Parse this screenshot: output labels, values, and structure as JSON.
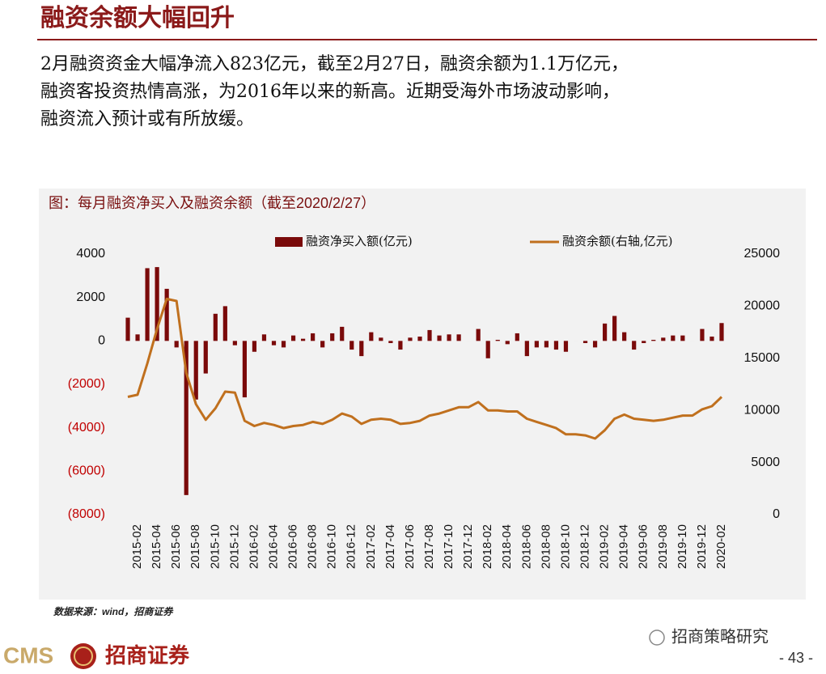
{
  "header": {
    "title": "融资余额大幅回升"
  },
  "body": {
    "lines": [
      "2月融资资金大幅净流入823亿元，截至2月27日，融资余额为1.1万亿元，",
      "融资客投资热情高涨，为2016年以来的新高。近期受海外市场波动影响，",
      "融资流入预计或有所放缓。"
    ]
  },
  "chart_data": {
    "type": "bar",
    "title": "图：每月融资净买入及融资余额（截至2020/2/27）",
    "categories": [
      null,
      "2015-02",
      null,
      "2015-04",
      null,
      "2015-06",
      null,
      "2015-08",
      null,
      "2015-10",
      null,
      "2015-12",
      null,
      "2016-02",
      null,
      "2016-04",
      null,
      "2016-06",
      null,
      "2016-08",
      null,
      "2016-10",
      null,
      "2016-12",
      null,
      "2017-02",
      null,
      "2017-04",
      null,
      "2017-06",
      null,
      "2017-08",
      null,
      "2017-10",
      null,
      "2017-12",
      null,
      "2018-02",
      null,
      "2018-04",
      null,
      "2018-06",
      null,
      "2018-08",
      null,
      "2018-10",
      null,
      "2018-12",
      null,
      "2019-02",
      null,
      "2019-04",
      null,
      "2019-06",
      null,
      "2019-08",
      null,
      "2019-10",
      null,
      "2019-12",
      null,
      "2020-02"
    ],
    "series": [
      {
        "name": "融资净买入额(亿元)",
        "type": "bar",
        "color": "#7a0a0a",
        "values": [
          1070,
          300,
          3350,
          3400,
          2400,
          -300,
          -7100,
          -2700,
          -1500,
          1250,
          1600,
          -200,
          -2600,
          -500,
          300,
          -200,
          -300,
          250,
          100,
          350,
          -300,
          350,
          650,
          -400,
          -700,
          400,
          150,
          -100,
          -400,
          150,
          200,
          500,
          250,
          300,
          300,
          0,
          550,
          -800,
          50,
          -150,
          350,
          -700,
          -300,
          -300,
          -400,
          -500,
          0,
          -100,
          -300,
          800,
          1150,
          400,
          -400,
          -100,
          50,
          150,
          250,
          250,
          0,
          550,
          200,
          823
        ]
      },
      {
        "name": "融资余额(右轴,亿元)",
        "type": "line",
        "axis": "y2",
        "color": "#c0701e",
        "values": [
          11300,
          11500,
          14500,
          17800,
          20700,
          20500,
          13600,
          10600,
          9100,
          10200,
          11800,
          11700,
          9000,
          8500,
          8800,
          8600,
          8300,
          8500,
          8600,
          8900,
          8700,
          9100,
          9700,
          9400,
          8700,
          9100,
          9200,
          9100,
          8700,
          8800,
          9000,
          9500,
          9700,
          10000,
          10300,
          10300,
          10800,
          10000,
          10000,
          9900,
          9900,
          9200,
          8900,
          8600,
          8300,
          7700,
          7700,
          7600,
          7300,
          8100,
          9200,
          9600,
          9200,
          9100,
          9000,
          9100,
          9300,
          9500,
          9500,
          10100,
          10400,
          11300
        ]
      }
    ],
    "ylim": [
      -8000,
      4000
    ],
    "yticks": [
      4000,
      2000,
      0,
      {
        "value": -2000,
        "label": "(2000)"
      },
      {
        "value": -4000,
        "label": "(4000)"
      },
      {
        "value": -6000,
        "label": "(6000)"
      },
      {
        "value": -8000,
        "label": "(8000)"
      }
    ],
    "negative_tick_color": "#c00000",
    "y2lim": [
      0,
      25000
    ],
    "y2ticks": [
      25000,
      20000,
      15000,
      10000,
      5000,
      0
    ],
    "legend": "top",
    "source": "数据来源：wind，招商证券"
  },
  "footer": {
    "brand": "CMS",
    "brand_cn": "招商证券",
    "account": "招商策略研究",
    "page": "- 43 -"
  }
}
